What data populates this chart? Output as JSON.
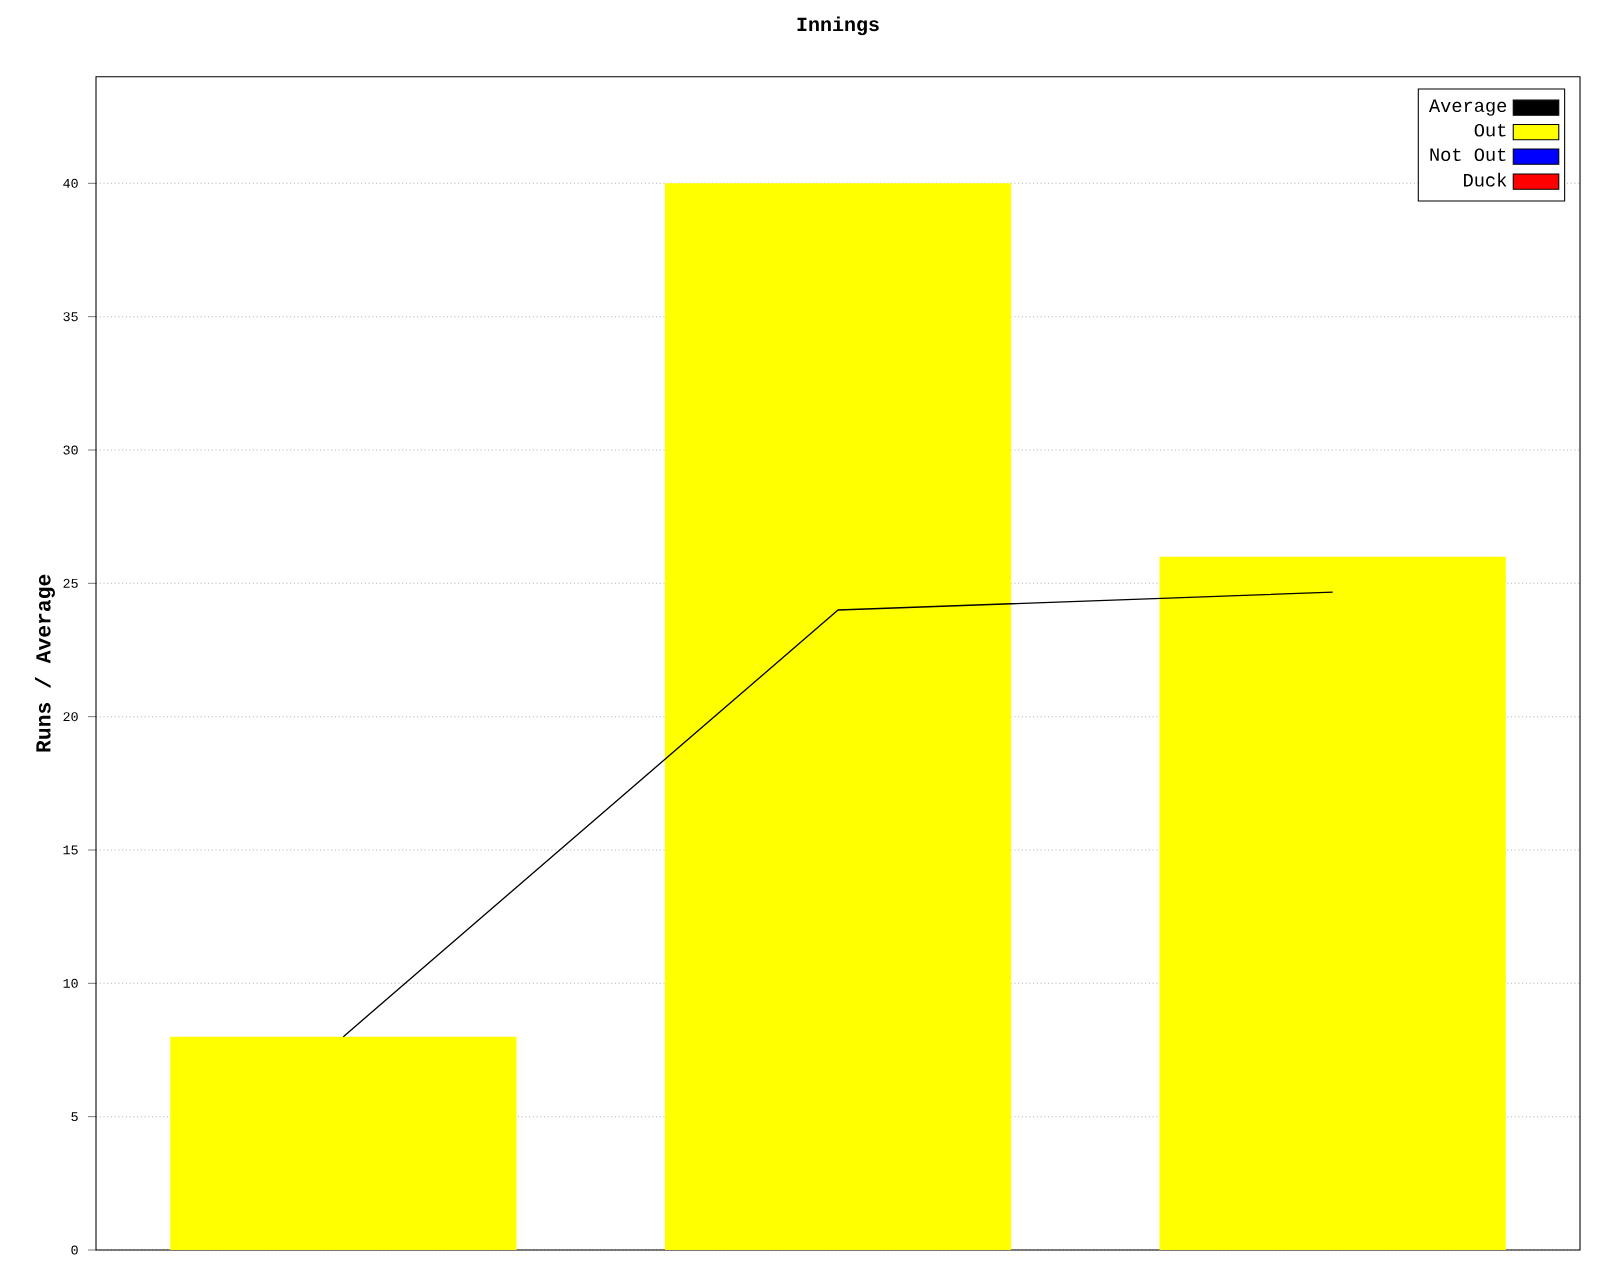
{
  "chart_data": {
    "type": "bar",
    "title": "Innings",
    "ylabel": "Runs / Average",
    "categories": [
      null,
      null,
      null
    ],
    "series": [
      {
        "name": "Average",
        "type": "line",
        "color": "#000000",
        "values": [
          8,
          24,
          24.67
        ]
      },
      {
        "name": "Out",
        "color": "#ffff00",
        "values": [
          8,
          40,
          26
        ]
      },
      {
        "name": "Not Out",
        "color": "#0000ff",
        "values": [
          null,
          null,
          null
        ]
      },
      {
        "name": "Duck",
        "color": "#ff0000",
        "values": [
          null,
          null,
          null
        ]
      }
    ],
    "ylim": [
      0,
      44
    ],
    "yticks": [
      0,
      5,
      10,
      15,
      20,
      25,
      30,
      35,
      40
    ],
    "grid": "y",
    "legend": "top right",
    "tick_labels": "y"
  }
}
